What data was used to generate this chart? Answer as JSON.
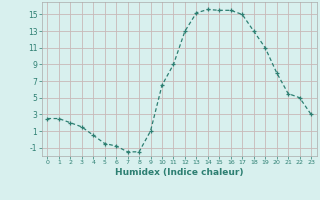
{
  "xlabel": "Humidex (Indice chaleur)",
  "x": [
    0,
    1,
    2,
    3,
    4,
    5,
    6,
    7,
    8,
    9,
    10,
    11,
    12,
    13,
    14,
    15,
    16,
    17,
    18,
    19,
    20,
    21,
    22,
    23
  ],
  "y": [
    2.5,
    2.5,
    2.0,
    1.5,
    0.5,
    -0.5,
    -0.8,
    -1.5,
    -1.5,
    1.0,
    6.5,
    9.0,
    13.0,
    15.2,
    15.6,
    15.5,
    15.5,
    15.0,
    13.0,
    11.0,
    8.0,
    5.5,
    5.0,
    3.0
  ],
  "line_color": "#2d7f72",
  "marker": "+",
  "bg_color": "#d8f0ee",
  "grid_color": "#c8b8b8",
  "ylim": [
    -2.0,
    16.5
  ],
  "xlim": [
    -0.5,
    23.5
  ],
  "yticks": [
    -1,
    1,
    3,
    5,
    7,
    9,
    11,
    13,
    15
  ],
  "xticks": [
    0,
    1,
    2,
    3,
    4,
    5,
    6,
    7,
    8,
    9,
    10,
    11,
    12,
    13,
    14,
    15,
    16,
    17,
    18,
    19,
    20,
    21,
    22,
    23
  ]
}
